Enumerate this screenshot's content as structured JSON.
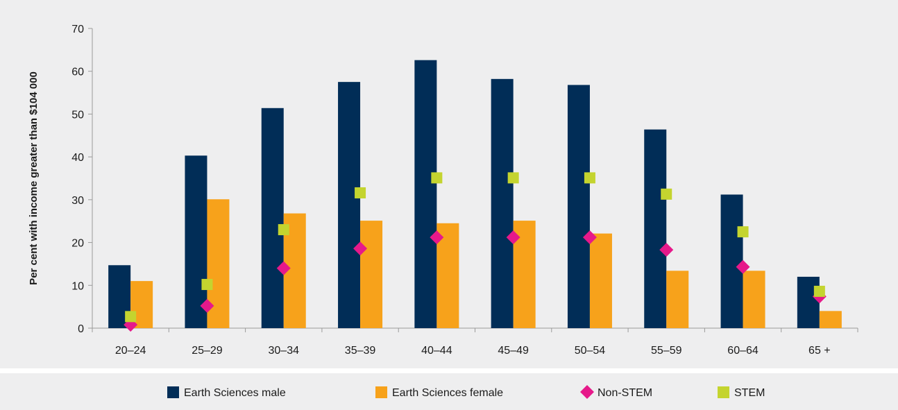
{
  "chart_data": {
    "type": "bar",
    "categories": [
      "20–24",
      "25–29",
      "30–34",
      "35–39",
      "40–44",
      "45–49",
      "50–54",
      "55–59",
      "60–64",
      "65 +"
    ],
    "series": [
      {
        "name": "Earth Sciences male",
        "kind": "bar",
        "color": "#012d57",
        "marker": "square",
        "values": [
          14.7,
          40.3,
          51.4,
          57.5,
          62.6,
          58.2,
          56.8,
          46.4,
          31.2,
          12.0
        ]
      },
      {
        "name": "Earth Sciences female",
        "kind": "bar",
        "color": "#f7a21b",
        "marker": "square",
        "values": [
          11.0,
          30.1,
          26.8,
          25.1,
          24.5,
          25.1,
          22.1,
          13.4,
          13.4,
          4.0
        ]
      },
      {
        "name": "Non-STEM",
        "kind": "point",
        "color": "#e6198a",
        "marker": "diamond",
        "values": [
          0.8,
          5.2,
          14.0,
          18.6,
          21.2,
          21.2,
          21.2,
          18.3,
          14.3,
          7.4
        ]
      },
      {
        "name": "STEM",
        "kind": "point",
        "color": "#c4d42f",
        "marker": "square",
        "values": [
          2.7,
          10.2,
          23.0,
          31.6,
          35.1,
          35.1,
          35.1,
          31.3,
          22.5,
          8.6
        ]
      }
    ],
    "ylabel": "Per cent with income greater than $104 000",
    "xlabel": "",
    "ylim": [
      0,
      70
    ],
    "yticks": [
      0,
      10,
      20,
      30,
      40,
      50,
      60,
      70
    ],
    "grid": false,
    "legend_position": "bottom"
  }
}
